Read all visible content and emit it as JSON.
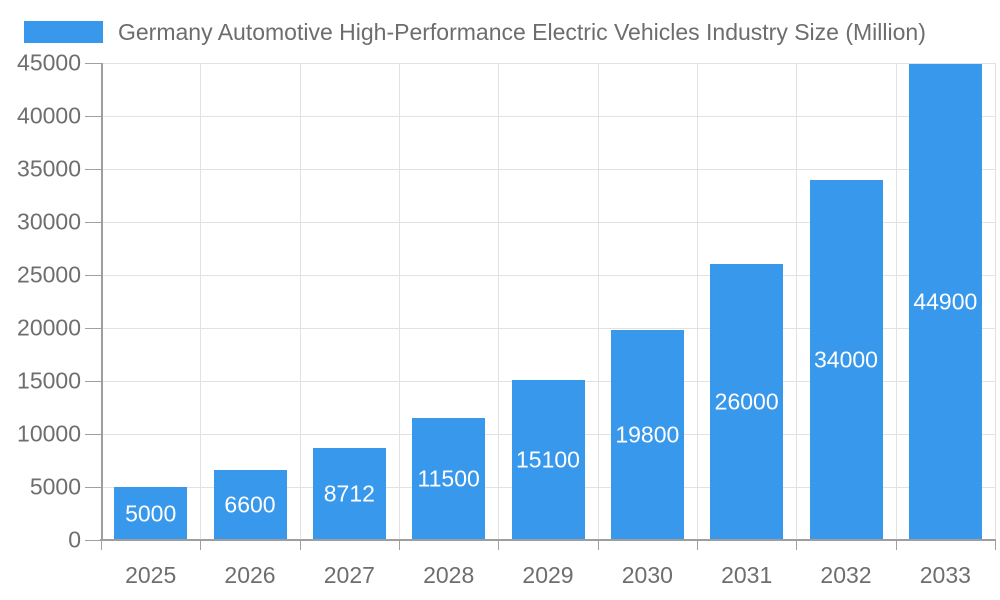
{
  "chart_data": {
    "type": "bar",
    "legend": "Germany Automotive High-Performance Electric Vehicles Industry Size (Million)",
    "categories": [
      "2025",
      "2026",
      "2027",
      "2028",
      "2029",
      "2030",
      "2031",
      "2032",
      "2033"
    ],
    "values": [
      5000,
      6600,
      8712,
      11500,
      15100,
      19800,
      26000,
      34000,
      44900
    ],
    "yticks": [
      0,
      5000,
      10000,
      15000,
      20000,
      25000,
      30000,
      35000,
      40000,
      45000
    ],
    "ylim": [
      0,
      45000
    ],
    "xlabel": "",
    "ylabel": "",
    "grid": true,
    "legend_position": "top-left",
    "bar_label_position": "inside-center",
    "colors": {
      "bar": "#3898ec",
      "grid": "#e2e2e2",
      "axis": "#9e9e9e",
      "tick": "#a0a0a0",
      "axis_text": "#6e6e6e",
      "legend_text": "#6d6d6d",
      "bar_label_text": "#ffffff",
      "background": "#ffffff"
    }
  }
}
